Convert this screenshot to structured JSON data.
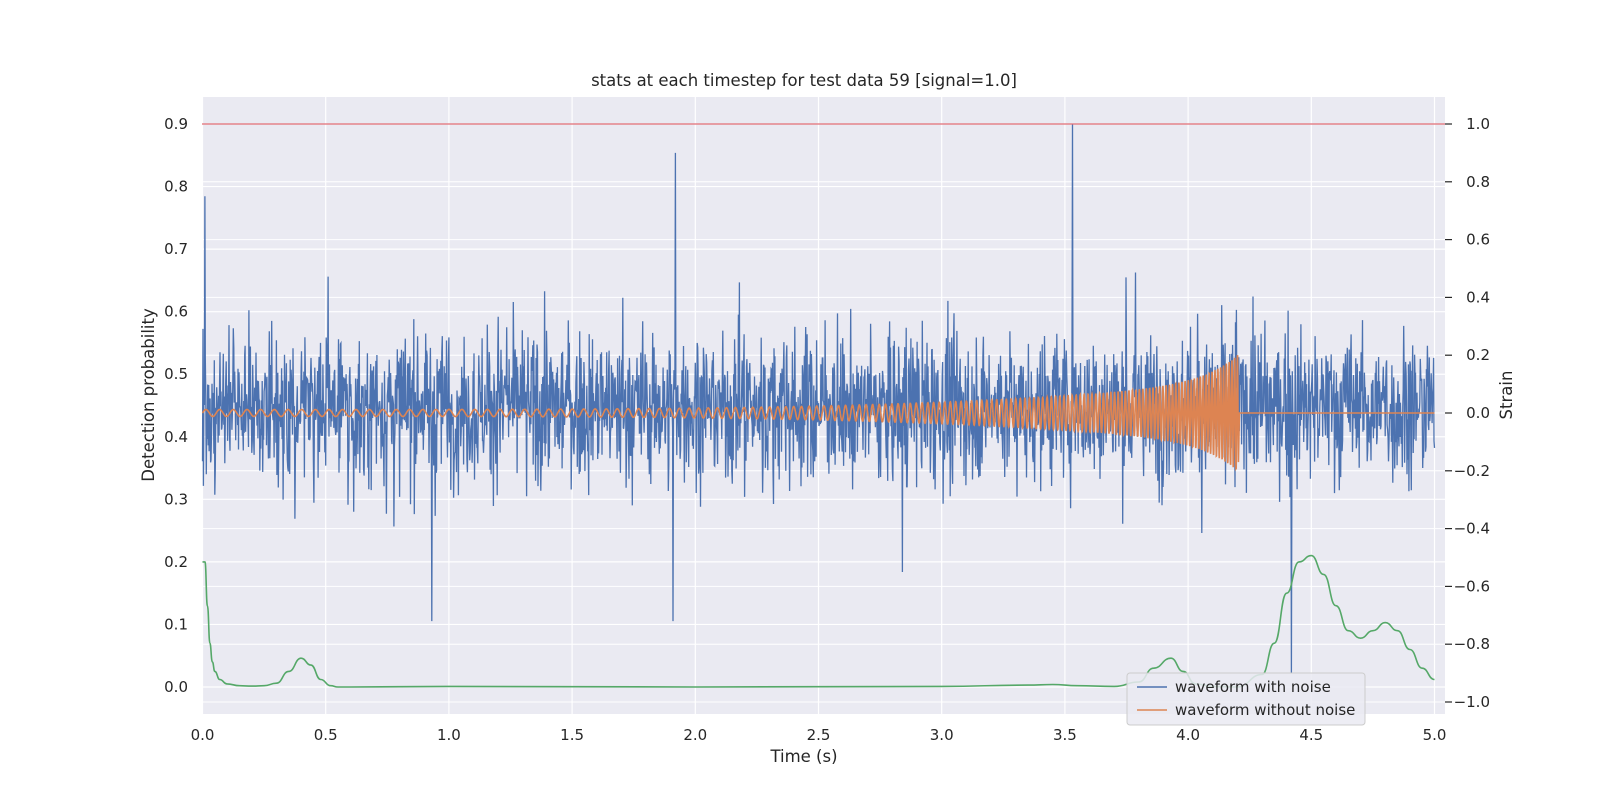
{
  "chart_data": {
    "type": "line",
    "title": "stats at each timestep for test data 59 [signal=1.0]",
    "xlabel": "Time (s)",
    "ylabel_left": "Detection probability",
    "ylabel_right": "Strain",
    "xlim": [
      0.0,
      5.0
    ],
    "ylim_left": [
      -0.04,
      0.94
    ],
    "ylim_right": [
      -1.04,
      1.05
    ],
    "x_ticks": [
      "0.0",
      "0.5",
      "1.0",
      "1.5",
      "2.0",
      "2.5",
      "3.0",
      "3.5",
      "4.0",
      "4.5",
      "5.0"
    ],
    "y_ticks_left": [
      "0.0",
      "0.1",
      "0.2",
      "0.3",
      "0.4",
      "0.5",
      "0.6",
      "0.7",
      "0.8",
      "0.9"
    ],
    "y_ticks_right": [
      "−1.0",
      "−0.8",
      "−0.6",
      "−0.4",
      "−0.2",
      "0.0",
      "0.2",
      "0.4",
      "0.6",
      "0.8",
      "1.0"
    ],
    "grid": true,
    "legend_position": "lower-right",
    "threshold_line": {
      "axis": "left",
      "y": 0.9,
      "color": "#e06c75"
    },
    "detection_probability": {
      "color": "#55a868",
      "t": [
        0.0,
        0.01,
        0.02,
        0.03,
        0.04,
        0.05,
        0.07,
        0.1,
        0.15,
        0.2,
        0.25,
        0.3,
        0.35,
        0.4,
        0.44,
        0.48,
        0.52,
        0.55,
        0.6,
        1.0,
        2.0,
        3.0,
        3.35,
        3.45,
        3.55,
        3.7,
        3.8,
        3.86,
        3.93,
        3.98,
        4.03,
        4.1,
        4.2,
        4.3,
        4.35,
        4.4,
        4.45,
        4.5,
        4.55,
        4.6,
        4.65,
        4.7,
        4.75,
        4.8,
        4.85,
        4.9,
        4.95,
        5.0
      ],
      "p": [
        0.2,
        0.2,
        0.13,
        0.07,
        0.04,
        0.025,
        0.012,
        0.005,
        0.002,
        0.0015,
        0.002,
        0.006,
        0.025,
        0.046,
        0.035,
        0.012,
        0.002,
        0.0,
        0.0,
        0.001,
        0.0,
        0.001,
        0.003,
        0.004,
        0.002,
        0.001,
        0.008,
        0.03,
        0.046,
        0.025,
        0.005,
        0.001,
        0.0,
        0.02,
        0.07,
        0.15,
        0.2,
        0.21,
        0.18,
        0.13,
        0.09,
        0.078,
        0.09,
        0.103,
        0.09,
        0.06,
        0.03,
        0.012
      ]
    },
    "series": [
      {
        "name": "waveform with noise",
        "axis": "right",
        "color": "#4c72b0",
        "noise_std": 0.18,
        "max": 1.0,
        "min": -0.94,
        "peak_at": 3.53,
        "trough_at": 2.84
      },
      {
        "name": "waveform without noise",
        "axis": "right",
        "color": "#dd8452",
        "amplitude_start": 0.012,
        "amplitude_peak": 0.2,
        "trough": -0.17,
        "merger_time": 4.2,
        "freq_start_hz": 18,
        "freq_end_hz": 90
      }
    ]
  }
}
